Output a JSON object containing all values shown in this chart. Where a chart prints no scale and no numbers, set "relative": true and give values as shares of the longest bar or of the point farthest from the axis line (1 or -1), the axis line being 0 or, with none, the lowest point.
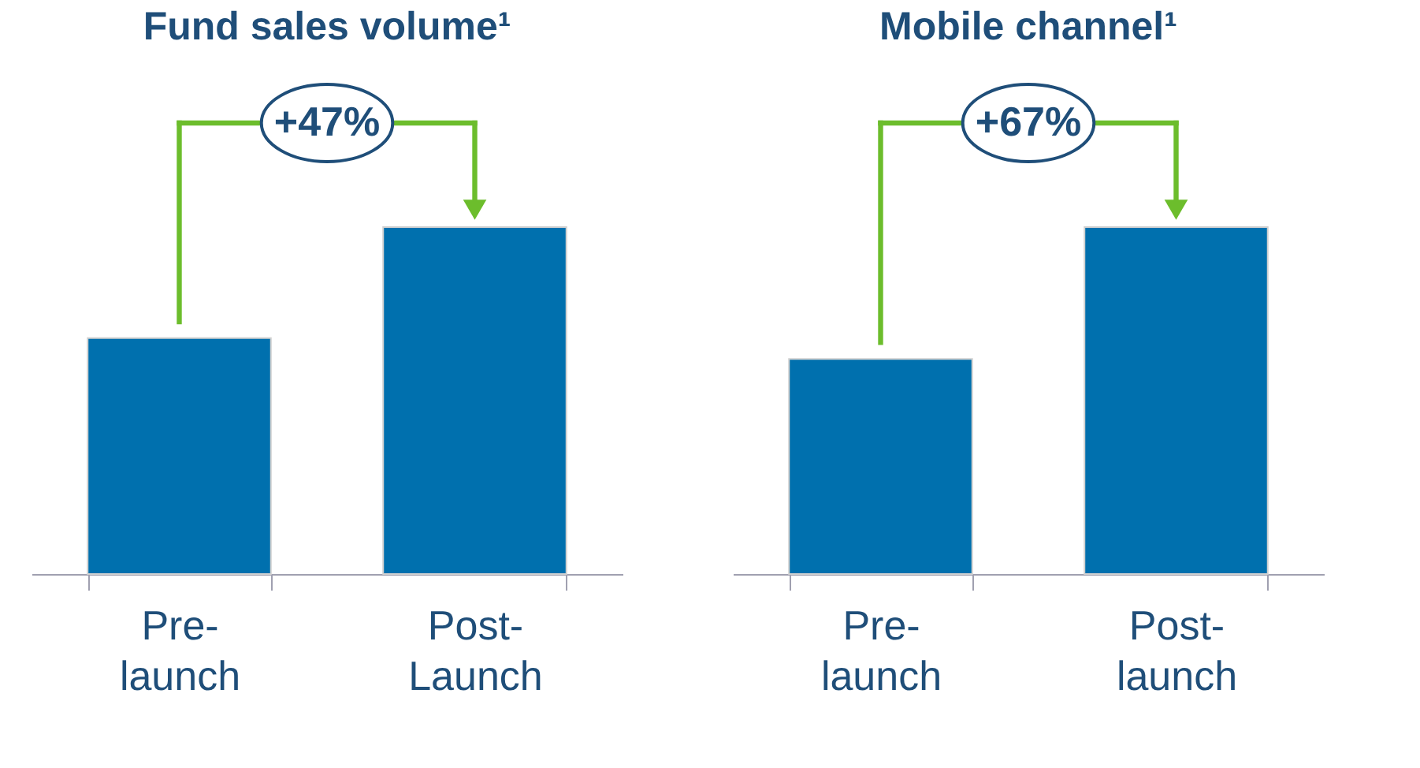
{
  "chart_data": [
    {
      "type": "bar",
      "title": "Fund sales volume¹",
      "categories": [
        "Pre-launch",
        "Post-Launch"
      ],
      "relative": true,
      "values": [
        0.68,
        1
      ],
      "color": "#0070ae",
      "annotations": [
        "+47%"
      ]
    },
    {
      "type": "bar",
      "title": "Mobile channel¹",
      "categories": [
        "Pre-launch",
        "Post-launch"
      ],
      "relative": true,
      "values": [
        0.62,
        1
      ],
      "color": "#0070ae",
      "annotations": [
        "+67%"
      ]
    }
  ]
}
